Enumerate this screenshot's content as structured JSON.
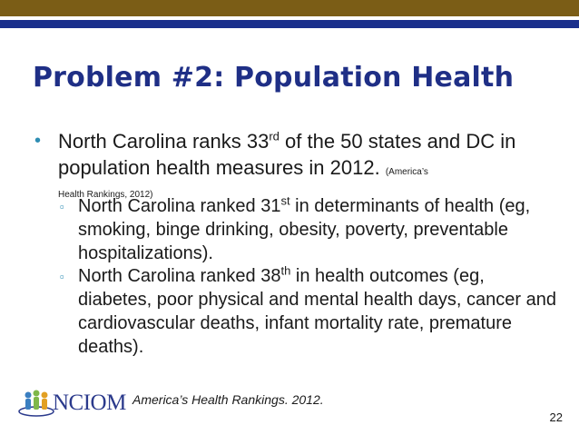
{
  "slide": {
    "title": "Problem #2: Population Health",
    "bullet1": {
      "text_a": "North Carolina ranks 33",
      "sup": "rd",
      "text_b": " of the 50 states and DC in population health measures in 2012. ",
      "cite_a": "(America’s",
      "cite_b": "Health Rankings, 2012)"
    },
    "sub1": {
      "text_a": "North Carolina ranked 31",
      "sup": "st",
      "text_b": " in determinants of health (eg, smoking, binge drinking, obesity, poverty, preventable hospitalizations)."
    },
    "sub2": {
      "text_a": "North Carolina ranked 38",
      "sup": "th",
      "text_b": " in health outcomes (eg, diabetes, poor physical and mental health days, cancer and cardiovascular deaths, infant mortality rate, premature deaths)."
    },
    "footer_citation": "America’s Health Rankings.  2012.",
    "logo_text": "NCIOM",
    "page_number": "22"
  },
  "colors": {
    "top_bar": "#7b5d16",
    "blue_rule": "#1a2f8c",
    "title": "#1f2f86",
    "bullet": "#2e8db3"
  }
}
